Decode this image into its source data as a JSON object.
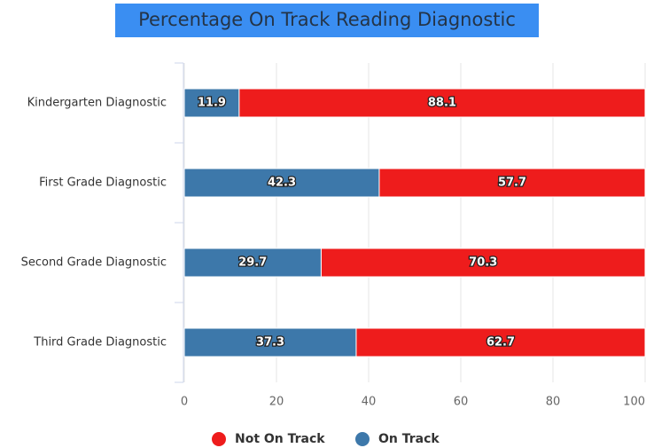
{
  "chart_data": {
    "type": "stacked_bar_horizontal",
    "title": "Percentage On Track Reading Diagnostic",
    "categories": [
      "Kindergarten Diagnostic",
      "First Grade Diagnostic",
      "Second Grade Diagnostic",
      "Third Grade Diagnostic"
    ],
    "series": [
      {
        "name": "On Track",
        "color": "#3d78aa",
        "values": [
          11.9,
          42.3,
          29.7,
          37.3
        ]
      },
      {
        "name": "Not On Track",
        "color": "#ee1c1c",
        "values": [
          88.1,
          57.7,
          70.3,
          62.7
        ]
      }
    ],
    "legend_order": [
      "Not On Track",
      "On Track"
    ],
    "xlim": [
      0,
      100
    ],
    "xticks": [
      0,
      20,
      40,
      60,
      80,
      100
    ],
    "grid": true
  }
}
